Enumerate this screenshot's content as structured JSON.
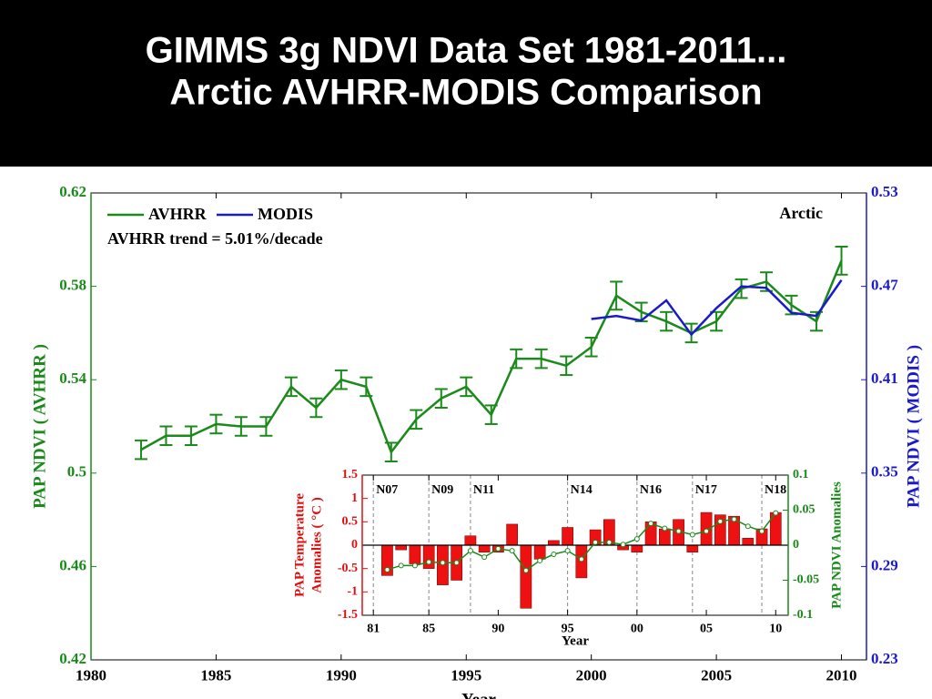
{
  "title_lines": [
    "GIMMS 3g NDVI Data Set 1981-2011...",
    "Arctic AVHRR-MODIS Comparison"
  ],
  "chart_data": [
    {
      "type": "line",
      "xlabel": "Year",
      "ylabel": "PAP NDVI ( AVHRR )",
      "y2label": "PAP NDVI ( MODIS )",
      "annotations": [
        "AVHRR trend = 5.01%/decade",
        "Arctic"
      ],
      "xlim": [
        1980,
        2011
      ],
      "xticks": [
        1980,
        1985,
        1990,
        1995,
        2000,
        2005,
        2010
      ],
      "ylim": [
        0.42,
        0.62
      ],
      "yticks": [
        0.42,
        0.46,
        0.5,
        0.54,
        0.58,
        0.62
      ],
      "y2lim": [
        0.23,
        0.53
      ],
      "y2ticks": [
        0.23,
        0.29,
        0.35,
        0.41,
        0.47,
        0.53
      ],
      "ycolor": "#1a8a1a",
      "y2color": "#1a1acc",
      "series": [
        {
          "name": "AVHRR",
          "color": "#1a8a1a",
          "x": [
            1982,
            1983,
            1984,
            1985,
            1986,
            1987,
            1988,
            1989,
            1990,
            1991,
            1992,
            1993,
            1994,
            1995,
            1996,
            1997,
            1998,
            1999,
            2000,
            2001,
            2002,
            2003,
            2004,
            2005,
            2006,
            2007,
            2008,
            2009,
            2010
          ],
          "values": [
            0.51,
            0.516,
            0.516,
            0.521,
            0.52,
            0.52,
            0.537,
            0.528,
            0.54,
            0.537,
            0.509,
            0.523,
            0.532,
            0.537,
            0.525,
            0.549,
            0.549,
            0.546,
            0.554,
            0.576,
            0.569,
            0.565,
            0.56,
            0.565,
            0.579,
            0.582,
            0.572,
            0.565,
            0.591
          ],
          "errors": [
            0.004,
            0.004,
            0.004,
            0.004,
            0.004,
            0.004,
            0.004,
            0.004,
            0.004,
            0.004,
            0.004,
            0.004,
            0.004,
            0.004,
            0.004,
            0.004,
            0.004,
            0.004,
            0.004,
            0.006,
            0.004,
            0.004,
            0.004,
            0.004,
            0.004,
            0.004,
            0.004,
            0.004,
            0.006
          ]
        },
        {
          "name": "MODIS",
          "color": "#1a1acc",
          "axis": "y2",
          "x": [
            2000,
            2001,
            2002,
            2003,
            2004,
            2005,
            2006,
            2007,
            2008,
            2009,
            2010
          ],
          "values": [
            0.449,
            0.451,
            0.448,
            0.461,
            0.439,
            0.456,
            0.47,
            0.469,
            0.453,
            0.451,
            0.474
          ]
        }
      ]
    },
    {
      "type": "bar",
      "xlabel": "Year",
      "ylabel": [
        "PAP Temperature",
        "Anomalies ( °C )"
      ],
      "y2label": "PAP NDVI Anomalies",
      "xlim": [
        1980.2,
        2010.9
      ],
      "xticks": [
        {
          "value": 1981,
          "label": "81"
        },
        {
          "value": 1985,
          "label": "85"
        },
        {
          "value": 1990,
          "label": "90"
        },
        {
          "value": 1995,
          "label": "95"
        },
        {
          "value": 2000,
          "label": "00"
        },
        {
          "value": 2005,
          "label": "05"
        },
        {
          "value": 2010,
          "label": "10"
        }
      ],
      "ylim": [
        -1.5,
        1.5
      ],
      "yticks": [
        -1.5,
        -1,
        -0.5,
        0,
        0.5,
        1,
        1.5
      ],
      "y2lim": [
        -0.1,
        0.1
      ],
      "y2ticks": [
        -0.1,
        -0.05,
        0,
        0.05,
        0.1
      ],
      "ycolor": "#e01010",
      "y2color": "#1a8a1a",
      "sensors": [
        {
          "label": "N07",
          "x": 1981
        },
        {
          "label": "N09",
          "x": 1985
        },
        {
          "label": "N11",
          "x": 1988
        },
        {
          "label": "N14",
          "x": 1995
        },
        {
          "label": "N16",
          "x": 2000
        },
        {
          "label": "N17",
          "x": 2004
        },
        {
          "label": "N18",
          "x": 2009
        }
      ],
      "series": [
        {
          "name": "PAP Temperature Anomalies",
          "color": "#ee1111",
          "x": [
            1982,
            1983,
            1984,
            1985,
            1986,
            1987,
            1988,
            1989,
            1990,
            1991,
            1992,
            1993,
            1994,
            1995,
            1996,
            1997,
            1998,
            1999,
            2000,
            2001,
            2002,
            2003,
            2004,
            2005,
            2006,
            2007,
            2008,
            2009,
            2010
          ],
          "values": [
            -0.65,
            -0.1,
            -0.4,
            -0.5,
            -0.85,
            -0.75,
            0.2,
            -0.15,
            -0.15,
            0.45,
            -1.35,
            -0.3,
            0.1,
            0.38,
            -0.7,
            0.33,
            0.55,
            -0.1,
            -0.15,
            0.5,
            0.35,
            0.55,
            -0.15,
            0.7,
            0.65,
            0.62,
            0.15,
            0.35,
            0.7
          ]
        },
        {
          "name": "PAP NDVI Anomalies",
          "color": "#1a8a1a",
          "axis": "y2",
          "type": "line",
          "x": [
            1982,
            1983,
            1984,
            1985,
            1986,
            1987,
            1988,
            1989,
            1990,
            1991,
            1992,
            1993,
            1994,
            1995,
            1996,
            1997,
            1998,
            1999,
            2000,
            2001,
            2002,
            2003,
            2004,
            2005,
            2006,
            2007,
            2008,
            2009,
            2010
          ],
          "values": [
            -0.035,
            -0.029,
            -0.029,
            -0.024,
            -0.025,
            -0.025,
            -0.008,
            -0.017,
            -0.005,
            -0.008,
            -0.036,
            -0.022,
            -0.013,
            -0.008,
            -0.02,
            0.004,
            0.004,
            0.001,
            0.009,
            0.031,
            0.024,
            0.02,
            0.015,
            0.02,
            0.034,
            0.037,
            0.027,
            0.02,
            0.046
          ]
        }
      ]
    }
  ]
}
